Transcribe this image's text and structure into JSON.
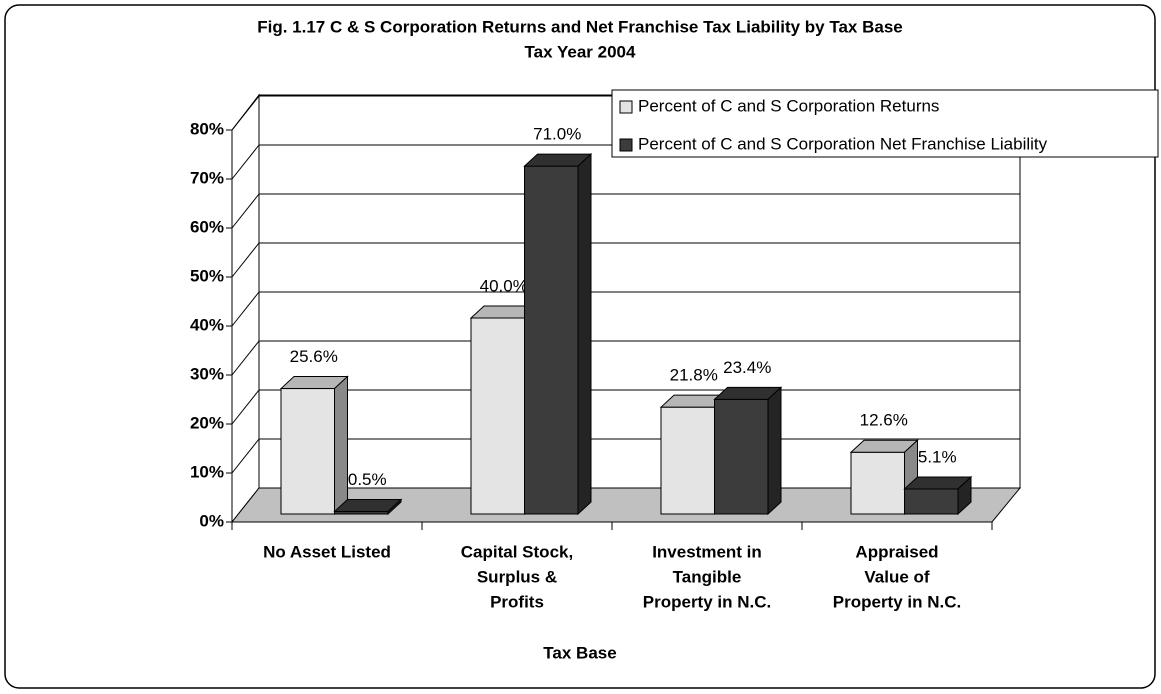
{
  "chart_data": {
    "type": "bar3d",
    "title": "Fig. 1.17  C & S Corporation Returns and Net Franchise Tax Liability by Tax Base",
    "subtitle": "Tax Year 2004",
    "x_label": "Tax Base",
    "categories": [
      [
        "No Asset Listed"
      ],
      [
        "Capital Stock,",
        "Surplus &",
        "Profits"
      ],
      [
        "Investment in",
        "Tangible",
        "Property in N.C."
      ],
      [
        "Appraised",
        "Value of",
        "Property in N.C."
      ]
    ],
    "series": [
      {
        "name": "Percent of C and S Corporation Returns",
        "color": "#e4e4e4",
        "values": [
          25.6,
          40.0,
          21.8,
          12.6
        ],
        "value_labels": [
          "25.6%",
          "40.0%",
          "21.8%",
          "12.6%"
        ]
      },
      {
        "name": "Percent of C and S Corporation Net Franchise Liability",
        "color": "#3c3c3c",
        "values": [
          0.5,
          71.0,
          23.4,
          5.1
        ],
        "value_labels": [
          "0.5%",
          "71.0%",
          "23.4%",
          "5.1%"
        ]
      }
    ],
    "ylim": [
      0,
      80
    ],
    "yticks": [
      {
        "value": 0,
        "label": "0%"
      },
      {
        "value": 10,
        "label": "10%"
      },
      {
        "value": 20,
        "label": "20%"
      },
      {
        "value": 30,
        "label": "30%"
      },
      {
        "value": 40,
        "label": "40%"
      },
      {
        "value": 50,
        "label": "50%"
      },
      {
        "value": 60,
        "label": "60%"
      },
      {
        "value": 70,
        "label": "70%"
      },
      {
        "value": 80,
        "label": "80%"
      }
    ],
    "grid": true,
    "legend": "top-right"
  }
}
